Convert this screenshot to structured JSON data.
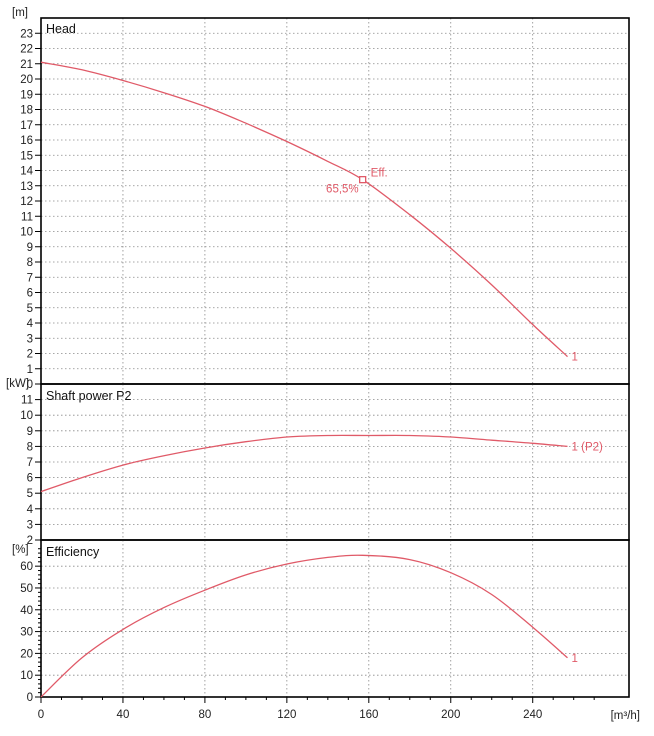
{
  "colors": {
    "curve": "#e05a68",
    "frame": "#000000",
    "grid": "#8a8a8a"
  },
  "x_axis": {
    "unit": "[m³/h]",
    "ticks": [
      0,
      40,
      80,
      120,
      160,
      200,
      240
    ],
    "range": [
      0,
      287
    ]
  },
  "chart_data": [
    {
      "type": "line",
      "title": "Head",
      "y_unit": "[m]",
      "ylim": [
        0,
        24
      ],
      "y_ticks": [
        0,
        1,
        2,
        3,
        4,
        5,
        6,
        7,
        8,
        9,
        10,
        11,
        12,
        13,
        14,
        15,
        16,
        17,
        18,
        19,
        20,
        21,
        22,
        23
      ],
      "grid": true,
      "series": [
        {
          "name": "1",
          "x": [
            0,
            20,
            40,
            60,
            80,
            100,
            120,
            140,
            157,
            180,
            200,
            220,
            240,
            257
          ],
          "y": [
            21.1,
            20.6,
            19.9,
            19.1,
            18.2,
            17.1,
            15.9,
            14.6,
            13.4,
            11.1,
            8.9,
            6.5,
            3.9,
            1.8
          ]
        }
      ],
      "annotations": [
        {
          "x": 157,
          "y": 13.4,
          "marker": "square",
          "label_right": "Eff.",
          "label_below_left": "65,5%"
        }
      ]
    },
    {
      "type": "line",
      "title": "Shaft power P2",
      "y_unit": "[kW]",
      "ylim": [
        2,
        12
      ],
      "y_ticks": [
        2,
        3,
        4,
        5,
        6,
        7,
        8,
        9,
        10,
        11
      ],
      "grid": true,
      "series": [
        {
          "name": "1 (P2)",
          "x": [
            0,
            20,
            40,
            60,
            80,
            100,
            120,
            140,
            160,
            180,
            200,
            220,
            240,
            257
          ],
          "y": [
            5.1,
            6.0,
            6.8,
            7.4,
            7.9,
            8.3,
            8.6,
            8.7,
            8.7,
            8.7,
            8.6,
            8.4,
            8.2,
            8.0
          ]
        }
      ]
    },
    {
      "type": "line",
      "title": "Efficiency",
      "y_unit": "[%]",
      "ylim": [
        0,
        72
      ],
      "y_ticks": [
        0,
        10,
        20,
        30,
        40,
        50,
        60
      ],
      "grid": true,
      "series": [
        {
          "name": "1",
          "x": [
            0,
            20,
            40,
            60,
            80,
            100,
            120,
            140,
            157,
            180,
            200,
            220,
            240,
            257
          ],
          "y": [
            0,
            18,
            31,
            41,
            49,
            56,
            61,
            64,
            65,
            63,
            57,
            47,
            32,
            18
          ]
        }
      ]
    }
  ]
}
